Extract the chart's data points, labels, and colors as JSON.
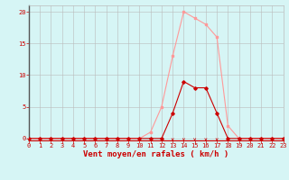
{
  "x": [
    0,
    1,
    2,
    3,
    4,
    5,
    6,
    7,
    8,
    9,
    10,
    11,
    12,
    13,
    14,
    15,
    16,
    17,
    18,
    19,
    20,
    21,
    22,
    23
  ],
  "y_rafales": [
    0,
    0,
    0,
    0,
    0,
    0,
    0,
    0,
    0,
    0,
    0,
    1,
    5,
    13,
    20,
    19,
    18,
    16,
    2,
    0,
    0,
    0,
    0,
    0
  ],
  "y_moyen": [
    0,
    0,
    0,
    0,
    0,
    0,
    0,
    0,
    0,
    0,
    0,
    0,
    0,
    4,
    9,
    8,
    8,
    4,
    0,
    0,
    0,
    0,
    0,
    0
  ],
  "color_rafales": "#FF9999",
  "color_moyen": "#CC0000",
  "bg_color": "#D6F5F5",
  "grid_color": "#BBBBBB",
  "axis_color": "#CC0000",
  "xlabel": "Vent moyen/en rafales ( km/h )",
  "xlim": [
    0,
    23
  ],
  "ylim": [
    -0.3,
    21
  ],
  "yticks": [
    0,
    5,
    10,
    15,
    20
  ],
  "xticks": [
    0,
    1,
    2,
    3,
    4,
    5,
    6,
    7,
    8,
    9,
    10,
    11,
    12,
    13,
    14,
    15,
    16,
    17,
    18,
    19,
    20,
    21,
    22,
    23
  ],
  "tick_fontsize": 5,
  "label_fontsize": 6.5
}
